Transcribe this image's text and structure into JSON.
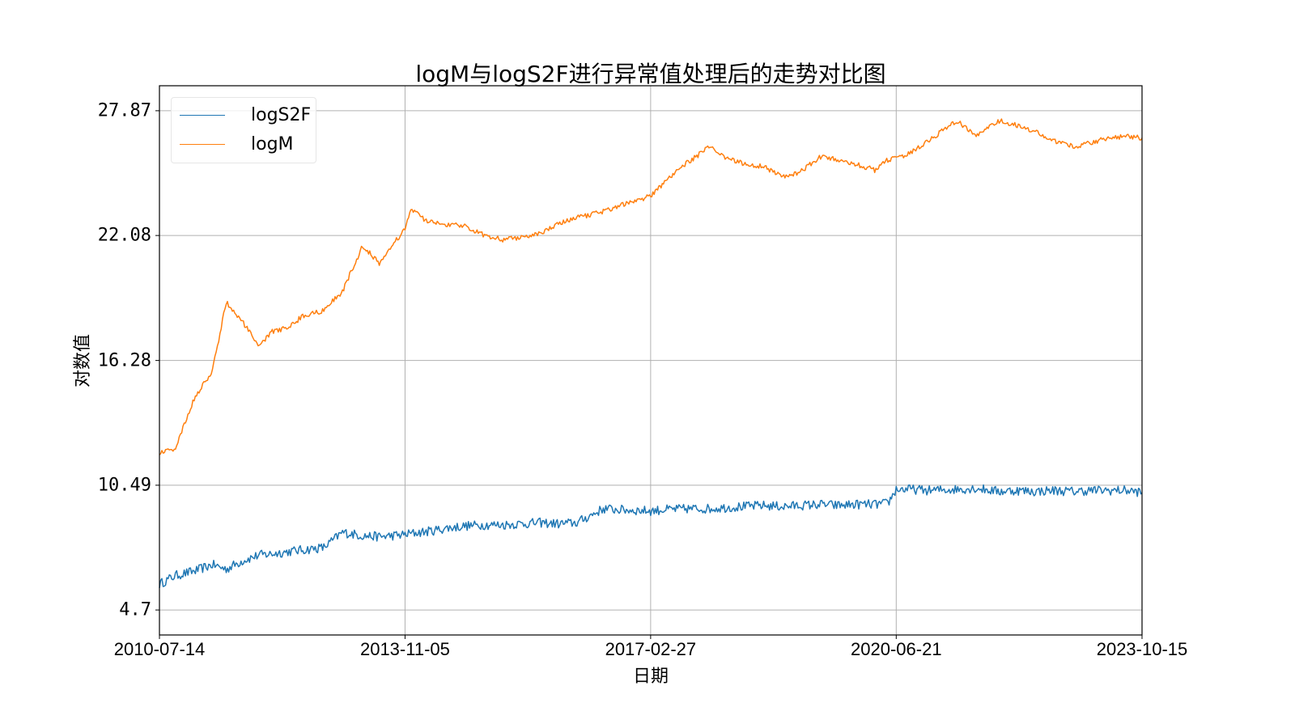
{
  "chart_data": {
    "type": "line",
    "title": "logM与logS2F进行异常值处理后的走势对比图",
    "xlabel": "日期",
    "ylabel": "对数值",
    "x_ticks": [
      "2010-07-14",
      "2013-11-05",
      "2017-02-27",
      "2020-06-21",
      "2023-10-15"
    ],
    "y_ticks": [
      "4.7",
      "10.49",
      "16.28",
      "22.08",
      "27.87"
    ],
    "y_tick_values": [
      4.7,
      10.49,
      16.28,
      22.08,
      27.87
    ],
    "xlim": [
      "2010-07-14",
      "2023-10-15"
    ],
    "ylim": [
      3.54,
      29.03
    ],
    "grid": true,
    "legend_position": "upper left",
    "x": [
      "2010-07-14",
      "2010-10-01",
      "2011-01-01",
      "2011-04-01",
      "2011-06-08",
      "2011-09-01",
      "2011-11-18",
      "2012-01-15",
      "2012-04-01",
      "2012-07-01",
      "2012-10-01",
      "2013-01-01",
      "2013-04-10",
      "2013-07-01",
      "2013-11-05",
      "2013-12-04",
      "2014-03-01",
      "2014-06-01",
      "2014-09-01",
      "2014-12-01",
      "2015-03-01",
      "2015-06-01",
      "2015-09-01",
      "2015-12-01",
      "2016-03-01",
      "2016-07-09",
      "2016-10-01",
      "2017-02-27",
      "2017-05-01",
      "2017-09-01",
      "2017-12-17",
      "2018-03-01",
      "2018-06-01",
      "2018-09-01",
      "2018-12-15",
      "2019-03-01",
      "2019-06-26",
      "2019-09-01",
      "2019-12-01",
      "2020-03-13",
      "2020-05-11",
      "2020-06-21",
      "2020-09-01",
      "2020-12-01",
      "2021-04-14",
      "2021-07-20",
      "2021-11-10",
      "2022-02-01",
      "2022-05-01",
      "2022-08-01",
      "2022-11-09",
      "2023-02-01",
      "2023-05-01",
      "2023-08-01",
      "2023-10-15"
    ],
    "series": [
      {
        "name": "logS2F",
        "color": "#1f77b4",
        "values": [
          5.9,
          6.3,
          6.5,
          6.8,
          6.6,
          7.0,
          7.25,
          7.3,
          7.4,
          7.5,
          7.6,
          8.3,
          8.15,
          8.1,
          8.2,
          8.25,
          8.35,
          8.5,
          8.6,
          8.65,
          8.65,
          8.7,
          8.75,
          8.7,
          8.75,
          9.4,
          9.35,
          9.3,
          9.35,
          9.4,
          9.4,
          9.45,
          9.5,
          9.55,
          9.5,
          9.55,
          9.6,
          9.55,
          9.6,
          9.6,
          9.65,
          10.3,
          10.3,
          10.25,
          10.3,
          10.35,
          10.2,
          10.25,
          10.2,
          10.25,
          10.2,
          10.25,
          10.25,
          10.25,
          10.15
        ]
      },
      {
        "name": "logM",
        "color": "#ff7f0e",
        "values": [
          12.0,
          12.2,
          14.5,
          15.8,
          19.0,
          18.0,
          16.9,
          17.6,
          17.8,
          18.4,
          18.6,
          19.5,
          21.6,
          20.8,
          22.4,
          23.3,
          22.7,
          22.6,
          22.5,
          22.1,
          21.9,
          22.0,
          22.2,
          22.6,
          22.9,
          23.2,
          23.5,
          23.9,
          24.5,
          25.5,
          26.2,
          25.7,
          25.4,
          25.3,
          24.8,
          25.0,
          25.8,
          25.6,
          25.4,
          25.1,
          25.6,
          25.7,
          25.9,
          26.5,
          27.4,
          26.7,
          27.4,
          27.2,
          26.9,
          26.5,
          26.2,
          26.4,
          26.6,
          26.7,
          26.6
        ]
      }
    ]
  },
  "legend": {
    "items": [
      {
        "label": "logS2F",
        "color": "#1f77b4"
      },
      {
        "label": "logM",
        "color": "#ff7f0e"
      }
    ]
  }
}
